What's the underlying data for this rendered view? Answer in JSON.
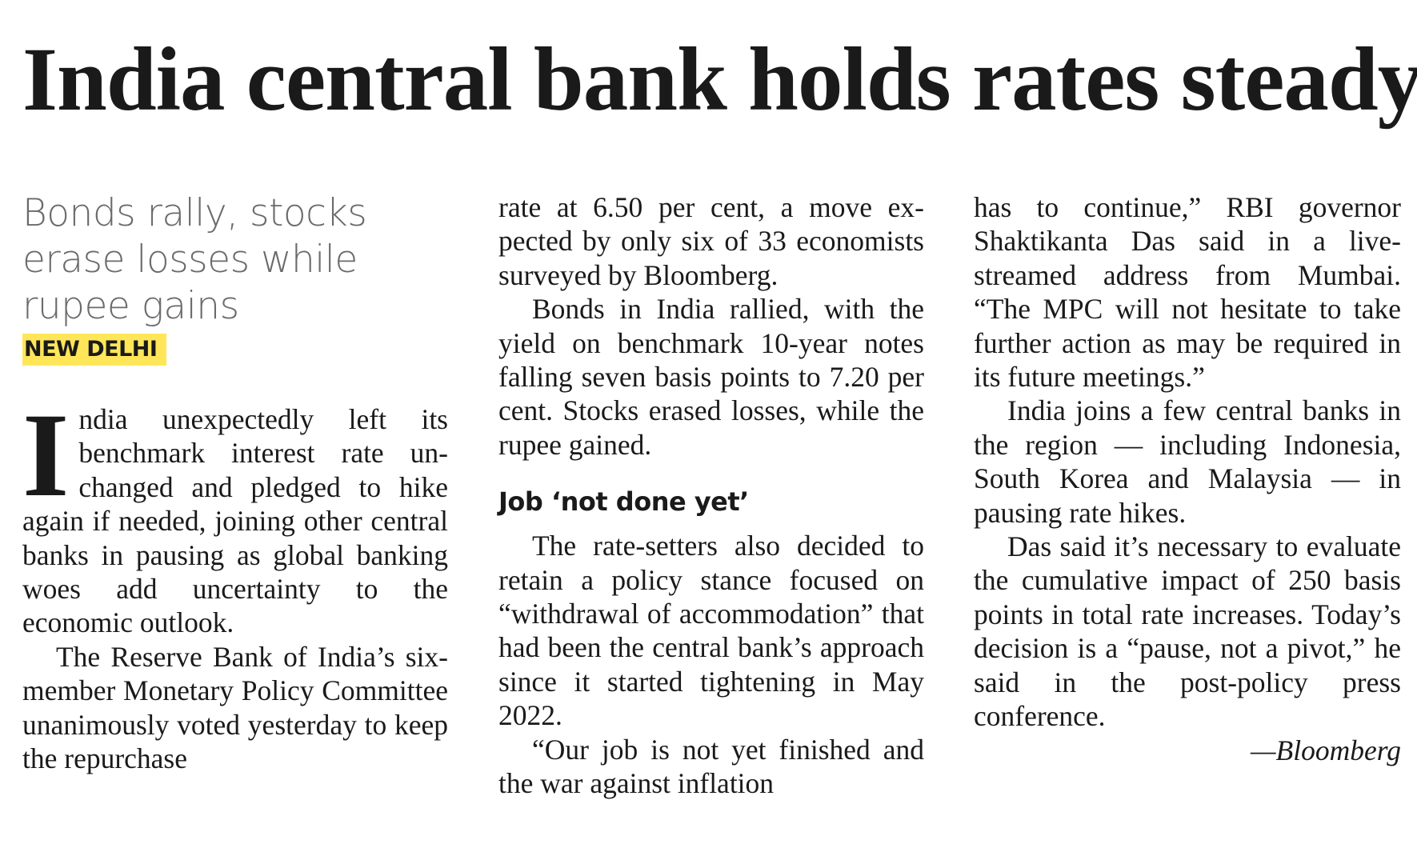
{
  "headline": "India central bank holds rates steady",
  "deck": "Bonds rally, stocks erase losses while rupee gains",
  "dateline": "NEW DELHI",
  "dropcap": "I",
  "col1": {
    "p1_rest": "ndia unexpectedly left its benchmark interest rate un­changed and pledged to hike again if needed, joining other central banks in pausing as glob­al banking woes add uncertainty to the economic outlook.",
    "p2": "The Reserve Bank of India’s six-member Monetary Policy Committee unanimously voted yesterday to keep the repurchase"
  },
  "col2": {
    "p1": "rate at 6.50 per cent, a move ex­pected by only six of 33 econo­mists surveyed by Bloomberg.",
    "p2": "Bonds in India rallied, with the yield on benchmark 10-year notes falling seven basis points to 7.20 per cent. Stocks erased loss­es, while the rupee gained.",
    "subhead": "Job ‘not done yet’",
    "p3": "The rate-setters also decided to retain a policy stance focused on “withdrawal of accommo­dation” that had been the cen­tral bank’s approach since it started tightening in May 2022.",
    "p4": "“Our job is not yet finished and the war against inflation"
  },
  "col3": {
    "p1": "has to continue,” RBI governor Shaktikanta Das said in a live-streamed address from Mum­bai. “The MPC will not hesitate to take further action as may be required in its future meetings.”",
    "p2": "India joins a few central banks in the region — includ­ing Indonesia, South Korea and Malaysia — in pausing rate hikes.",
    "p3": "Das said it’s necessary to evaluate the cumulative impact of 250 basis points in total rate increases. Today’s decision is a “pause, not a pivot,” he said in the post-policy press conference.",
    "credit": "—Bloomberg"
  },
  "colors": {
    "dateline_highlight": "#ffe658",
    "deck_text": "#6b6b6b",
    "body_text": "#1a1a1a"
  }
}
